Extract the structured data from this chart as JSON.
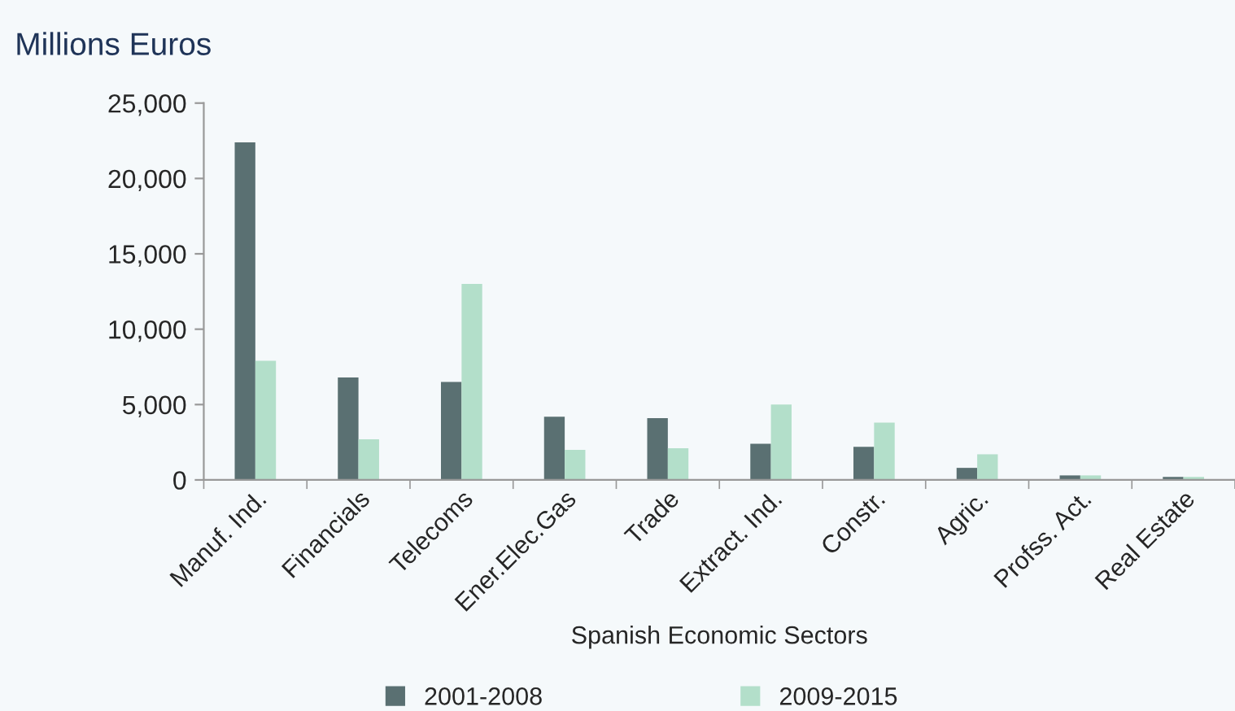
{
  "chart_data": {
    "type": "bar",
    "title": "Millions Euros",
    "xlabel": "Spanish Economic Sectors",
    "categories": [
      "Manuf. Ind.",
      "Financials",
      "Telecoms",
      "Ener.Elec.Gas",
      "Trade",
      "Extract. Ind.",
      "Constr.",
      "Agric.",
      "Profss. Act.",
      "Real Estate"
    ],
    "series": [
      {
        "name": "2001-2008",
        "color": "#5a7072",
        "values": [
          22400,
          6800,
          6500,
          4200,
          4100,
          2400,
          2200,
          800,
          300,
          200
        ]
      },
      {
        "name": "2009-2015",
        "color": "#b3dfca",
        "values": [
          7900,
          2700,
          13000,
          2000,
          2100,
          5000,
          3800,
          1700,
          300,
          200
        ]
      }
    ],
    "ylim": [
      0,
      25000
    ],
    "yticks": [
      {
        "value": 0,
        "label": "0"
      },
      {
        "value": 5000,
        "label": "5,000"
      },
      {
        "value": 10000,
        "label": "10,000"
      },
      {
        "value": 15000,
        "label": "15,000"
      },
      {
        "value": 20000,
        "label": "20,000"
      },
      {
        "value": 25000,
        "label": "25,000"
      }
    ],
    "grid": false,
    "legend": "bottom"
  }
}
